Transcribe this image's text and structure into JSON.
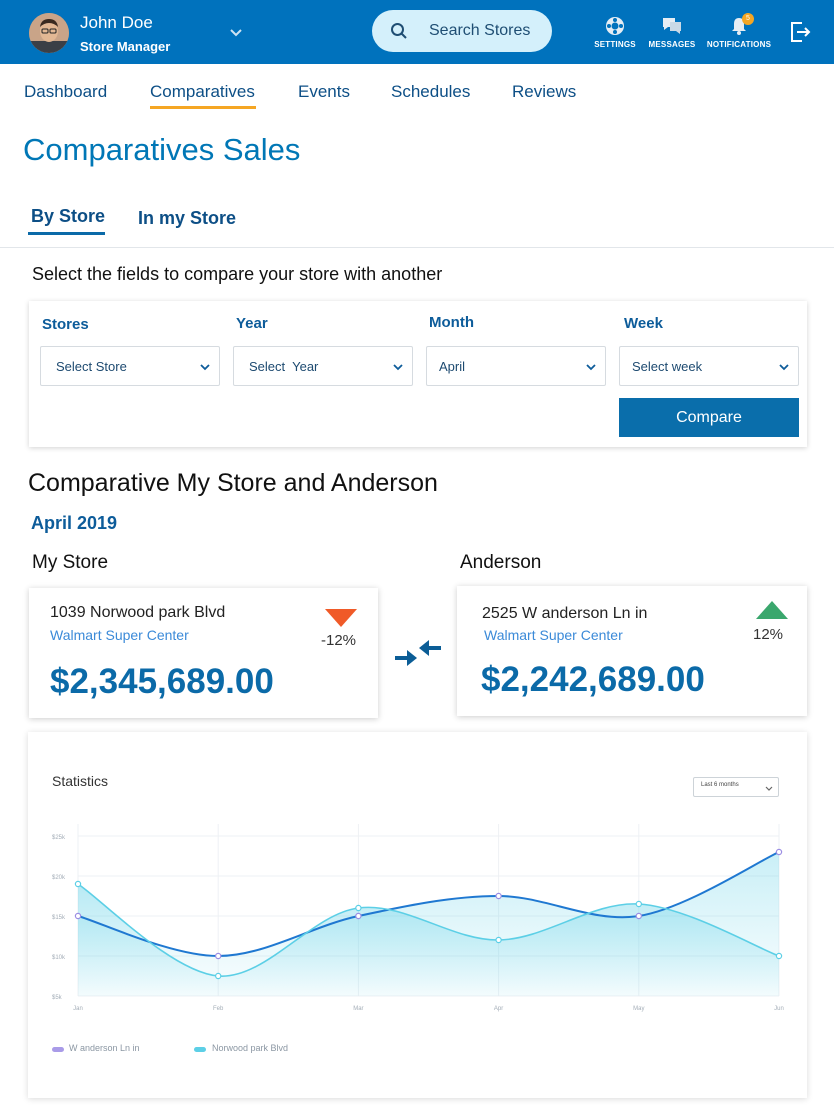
{
  "header": {
    "user_name": "John Doe",
    "user_role": "Store Manager",
    "search_placeholder": "Search Stores",
    "icons": [
      {
        "name": "settings-icon",
        "label": "SETTINGS"
      },
      {
        "name": "messages-icon",
        "label": "MESSAGES"
      },
      {
        "name": "notifications-icon",
        "label": "NOTIFICATIONS",
        "badge": "5"
      }
    ]
  },
  "nav": {
    "tabs": [
      {
        "label": "Dashboard"
      },
      {
        "label": "Comparatives",
        "active": true
      },
      {
        "label": "Events"
      },
      {
        "label": "Schedules"
      },
      {
        "label": "Reviews"
      }
    ]
  },
  "page": {
    "title": "Comparatives Sales",
    "subtabs": [
      {
        "label": "By Store",
        "active": true
      },
      {
        "label": "In my Store"
      }
    ],
    "instruction": "Select the fields to compare your store with another"
  },
  "filters": {
    "stores": {
      "label": "Stores",
      "value": "Select Store"
    },
    "year": {
      "label": "Year",
      "value": "Select  Year"
    },
    "month": {
      "label": "Month",
      "value": "April"
    },
    "week": {
      "label": "Week",
      "value": "Select week"
    },
    "compare_label": "Compare"
  },
  "comparison": {
    "title": "Comparative My Store and Anderson",
    "period": "April 2019",
    "my_store": {
      "heading": "My Store",
      "address": "1039 Norwood park Blvd",
      "chain": "Walmart Super Center",
      "amount": "$2,345,689.00",
      "change": "-12%",
      "trend": "down"
    },
    "other_store": {
      "heading": "Anderson",
      "address": "2525 W anderson Ln in",
      "chain": "Walmart Super Center",
      "amount": "$2,242,689.00",
      "change": "12%",
      "trend": "up"
    }
  },
  "colors": {
    "primary": "#0072bd",
    "accent": "#f5a623",
    "down": "#f05a28",
    "up": "#3aa76d"
  },
  "stats": {
    "title": "Statistics",
    "range": "Last 6 months"
  },
  "chart_data": {
    "type": "area",
    "x": [
      "Jan",
      "Feb",
      "Mar",
      "Apr",
      "May",
      "Jun"
    ],
    "yticks": [
      "$5k",
      "$10k",
      "$15k",
      "$20k",
      "$25k"
    ],
    "ylim": [
      5,
      25
    ],
    "series": [
      {
        "name": "W anderson Ln in",
        "values": [
          15,
          10,
          15,
          17.5,
          15,
          23
        ],
        "color": "#1f78d1"
      },
      {
        "name": "Norwood park Blvd",
        "values": [
          19,
          7.5,
          16,
          12,
          16.5,
          10
        ],
        "color": "#5ccfe6"
      }
    ],
    "legend": "bottom-left",
    "grid": true
  }
}
